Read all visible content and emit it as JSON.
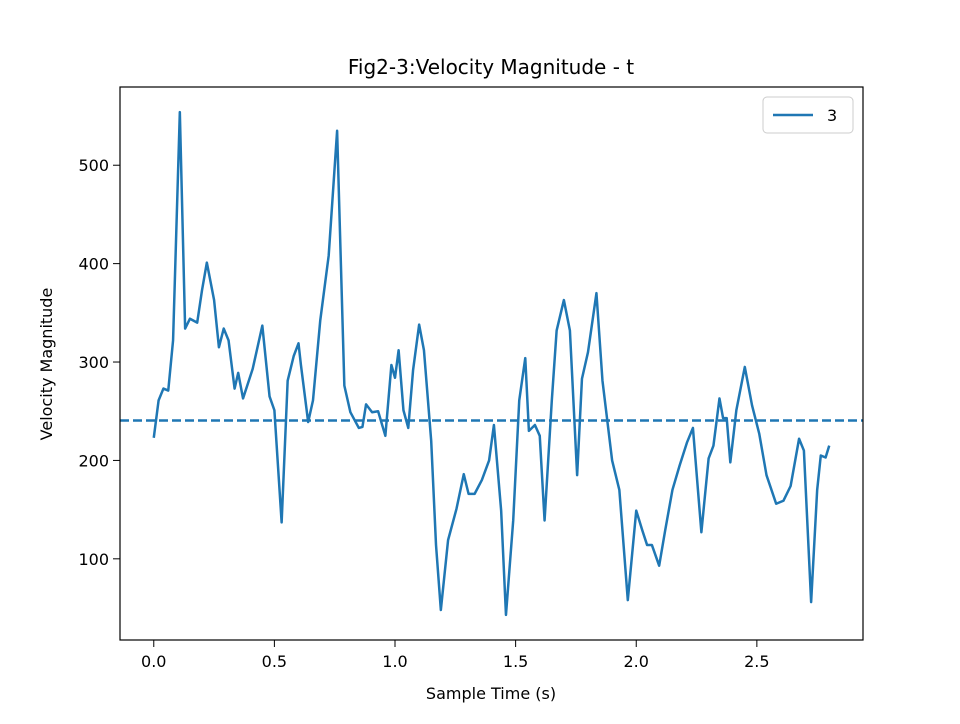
{
  "chart_data": {
    "type": "line",
    "title": "Fig2-3:Velocity Magnitude - t",
    "x_label": "Sample Time (s)",
    "y_label": "Velocity Magnitude",
    "x": [
      0,
      0.02,
      0.04,
      0.06,
      0.08,
      0.108,
      0.13,
      0.15,
      0.18,
      0.2,
      0.22,
      0.25,
      0.27,
      0.29,
      0.31,
      0.335,
      0.35,
      0.37,
      0.41,
      0.45,
      0.48,
      0.5,
      0.53,
      0.555,
      0.58,
      0.6,
      0.61,
      0.64,
      0.66,
      0.69,
      0.725,
      0.76,
      0.79,
      0.815,
      0.85,
      0.865,
      0.88,
      0.905,
      0.93,
      0.96,
      0.985,
      1.0,
      1.015,
      1.035,
      1.055,
      1.075,
      1.1,
      1.12,
      1.15,
      1.17,
      1.19,
      1.22,
      1.255,
      1.285,
      1.305,
      1.33,
      1.36,
      1.39,
      1.41,
      1.44,
      1.46,
      1.49,
      1.515,
      1.54,
      1.555,
      1.58,
      1.6,
      1.62,
      1.65,
      1.67,
      1.7,
      1.725,
      1.755,
      1.775,
      1.8,
      1.835,
      1.86,
      1.9,
      1.93,
      1.965,
      2.0,
      2.025,
      2.045,
      2.065,
      2.095,
      2.12,
      2.15,
      2.18,
      2.21,
      2.235,
      2.27,
      2.3,
      2.32,
      2.345,
      2.36,
      2.375,
      2.39,
      2.415,
      2.45,
      2.48,
      2.51,
      2.54,
      2.58,
      2.61,
      2.64,
      2.675,
      2.695,
      2.725,
      2.75,
      2.765,
      2.785,
      2.8
    ],
    "series": [
      {
        "name": "3",
        "color": "#1f77b4",
        "values": [
          223,
          261,
          273,
          271,
          322,
          554,
          334,
          344,
          340,
          373,
          401,
          363,
          315,
          334,
          322,
          273,
          289,
          263,
          293,
          337,
          265,
          251,
          137,
          281,
          306,
          319,
          297,
          239,
          261,
          342,
          408,
          535,
          276,
          249,
          233,
          234,
          257,
          249,
          250,
          225,
          297,
          284,
          312,
          251,
          233,
          292,
          338,
          312,
          220,
          114,
          48,
          119,
          151,
          186,
          166,
          166,
          180,
          200,
          236,
          149,
          43,
          139,
          261,
          304,
          230,
          236,
          225,
          139,
          261,
          332,
          363,
          332,
          185,
          283,
          310,
          370,
          281,
          200,
          170,
          58,
          149,
          129,
          114,
          114,
          93,
          129,
          170,
          195,
          218,
          233,
          127,
          202,
          215,
          263,
          243,
          243,
          198,
          251,
          295,
          256,
          227,
          185,
          156,
          159,
          174,
          222,
          210,
          56,
          170,
          205,
          203,
          215
        ]
      }
    ],
    "hline": 240.6,
    "xlim": [
      -0.14,
      2.94
    ],
    "xticks": [
      {
        "value": 0,
        "label": "0.0"
      },
      0.5,
      {
        "value": 1,
        "label": "1.0"
      },
      1.5,
      {
        "value": 2,
        "label": "2.0"
      },
      2.5
    ],
    "ylim": [
      17.5,
      579.5
    ],
    "yticks": [
      100,
      200,
      300,
      400,
      500
    ],
    "legend": "upper right"
  }
}
